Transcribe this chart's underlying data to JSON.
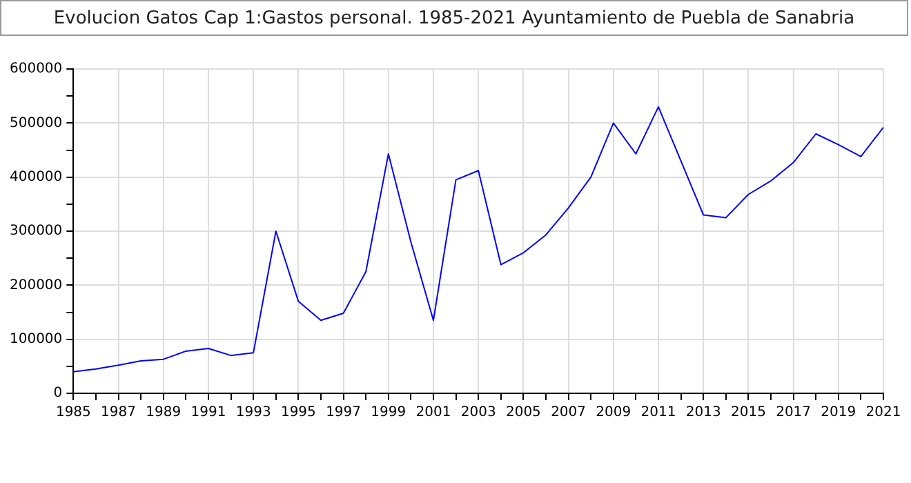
{
  "chart_data": {
    "type": "line",
    "title": "Evolucion Gatos Cap 1:Gastos personal. 1985-2021 Ayuntamiento de Puebla de Sanabria",
    "x": [
      1985,
      1986,
      1987,
      1988,
      1989,
      1990,
      1991,
      1992,
      1993,
      1994,
      1995,
      1996,
      1997,
      1998,
      1999,
      2000,
      2001,
      2002,
      2003,
      2004,
      2005,
      2006,
      2007,
      2008,
      2009,
      2010,
      2011,
      2012,
      2013,
      2014,
      2015,
      2016,
      2017,
      2018,
      2019,
      2020,
      2021
    ],
    "series": [
      {
        "color": "#0000ff",
        "values": [
          40000,
          45000,
          52000,
          60000,
          63000,
          78000,
          83000,
          70000,
          75000,
          300000,
          170000,
          135000,
          148000,
          225000,
          443000,
          280000,
          135000,
          395000,
          412000,
          238000,
          260000,
          293000,
          343000,
          400000,
          500000,
          443000,
          530000,
          430000,
          330000,
          325000,
          368000,
          393000,
          427000,
          480000,
          460000,
          438000,
          492000
        ]
      }
    ],
    "xlim": [
      1985,
      2021
    ],
    "xticks": [
      1985,
      {
        "value": 1986,
        "label": null
      },
      1987,
      {
        "value": 1988,
        "label": null
      },
      1989,
      {
        "value": 1990,
        "label": null
      },
      1991,
      {
        "value": 1992,
        "label": null
      },
      1993,
      {
        "value": 1994,
        "label": null
      },
      1995,
      {
        "value": 1996,
        "label": null
      },
      1997,
      {
        "value": 1998,
        "label": null
      },
      1999,
      {
        "value": 2000,
        "label": null
      },
      2001,
      {
        "value": 2002,
        "label": null
      },
      2003,
      {
        "value": 2004,
        "label": null
      },
      2005,
      {
        "value": 2006,
        "label": null
      },
      2007,
      {
        "value": 2008,
        "label": null
      },
      2009,
      {
        "value": 2010,
        "label": null
      },
      2011,
      {
        "value": 2012,
        "label": null
      },
      2013,
      {
        "value": 2014,
        "label": null
      },
      2015,
      {
        "value": 2016,
        "label": null
      },
      2017,
      {
        "value": 2018,
        "label": null
      },
      2019,
      {
        "value": 2020,
        "label": null
      },
      2021
    ],
    "ylim": [
      0,
      600000
    ],
    "yticks": [
      0,
      {
        "value": 50000,
        "label": null
      },
      100000,
      {
        "value": 150000,
        "label": null
      },
      200000,
      {
        "value": 250000,
        "label": null
      },
      300000,
      {
        "value": 350000,
        "label": null
      },
      400000,
      {
        "value": 450000,
        "label": null
      },
      500000,
      {
        "value": 550000,
        "label": null
      },
      600000
    ],
    "grid": true,
    "marker": "none",
    "line_style": "solid",
    "legend": false
  }
}
